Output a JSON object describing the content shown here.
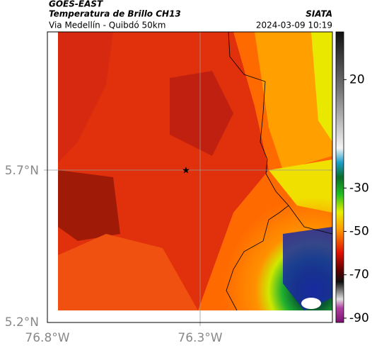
{
  "header": {
    "title": "GOES-EAST",
    "subtitle": "Temperatura de Brillo CH13",
    "route": "Via Medellín - Quibdó 50km",
    "source": "SIATA",
    "datetime": "2024-03-09 10:19"
  },
  "map": {
    "lat_labels": [
      "5.7°N",
      "5.2°N"
    ],
    "lon_labels": [
      "76.8°W",
      "76.3°W"
    ]
  },
  "colorbar": {
    "clim": [
      -92,
      42
    ],
    "ticks": [
      20,
      -30,
      -50,
      -70,
      -90
    ]
  }
}
